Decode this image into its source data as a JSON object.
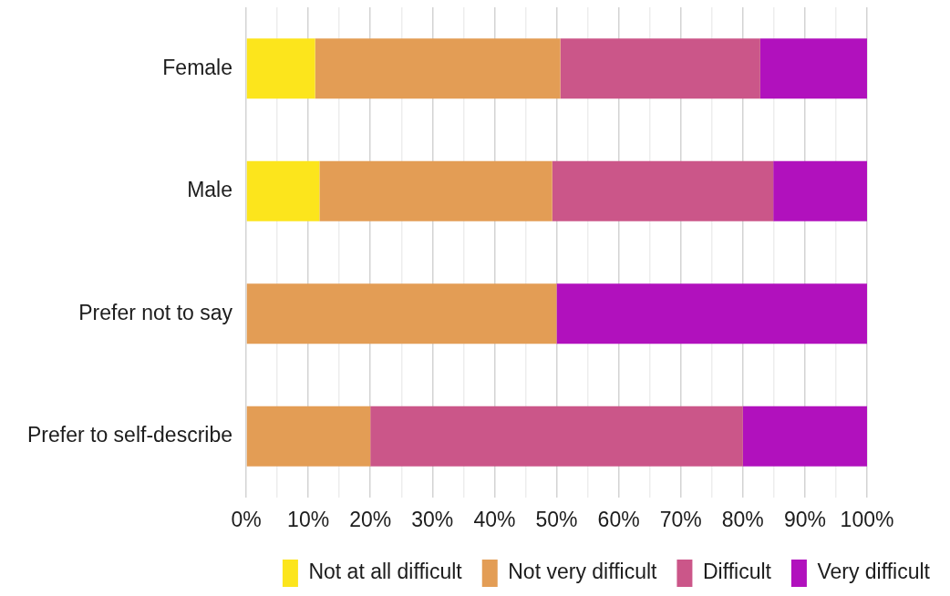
{
  "chart_data": {
    "type": "bar",
    "orientation": "horizontal",
    "stacked": true,
    "categories": [
      "Female",
      "Male",
      "Prefer not to say",
      "Prefer to self-describe"
    ],
    "series": [
      {
        "name": "Not at all difficult",
        "color": "#fce51c",
        "values": [
          11.1,
          11.8,
          0,
          0
        ]
      },
      {
        "name": "Not very difficult",
        "color": "#e39d55",
        "values": [
          39.5,
          37.5,
          50,
          20
        ]
      },
      {
        "name": "Difficult",
        "color": "#cb5689",
        "values": [
          32.2,
          35.6,
          0,
          60
        ]
      },
      {
        "name": "Very difficult",
        "color": "#b111bd",
        "values": [
          17.2,
          15.1,
          50,
          20
        ]
      }
    ],
    "xlim": [
      0,
      100
    ],
    "xticks": [
      {
        "value": 0,
        "label": "0%"
      },
      {
        "value": 5,
        "label": null
      },
      {
        "value": 10,
        "label": "10%"
      },
      {
        "value": 15,
        "label": null
      },
      {
        "value": 20,
        "label": "20%"
      },
      {
        "value": 25,
        "label": null
      },
      {
        "value": 30,
        "label": "30%"
      },
      {
        "value": 35,
        "label": null
      },
      {
        "value": 40,
        "label": "40%"
      },
      {
        "value": 45,
        "label": null
      },
      {
        "value": 50,
        "label": "50%"
      },
      {
        "value": 55,
        "label": null
      },
      {
        "value": 60,
        "label": "60%"
      },
      {
        "value": 65,
        "label": null
      },
      {
        "value": 70,
        "label": "70%"
      },
      {
        "value": 75,
        "label": null
      },
      {
        "value": 80,
        "label": "80%"
      },
      {
        "value": 85,
        "label": null
      },
      {
        "value": 90,
        "label": "90%"
      },
      {
        "value": 95,
        "label": null
      },
      {
        "value": 100,
        "label": "100%"
      }
    ],
    "grid": "x",
    "legend": "bottom right"
  }
}
